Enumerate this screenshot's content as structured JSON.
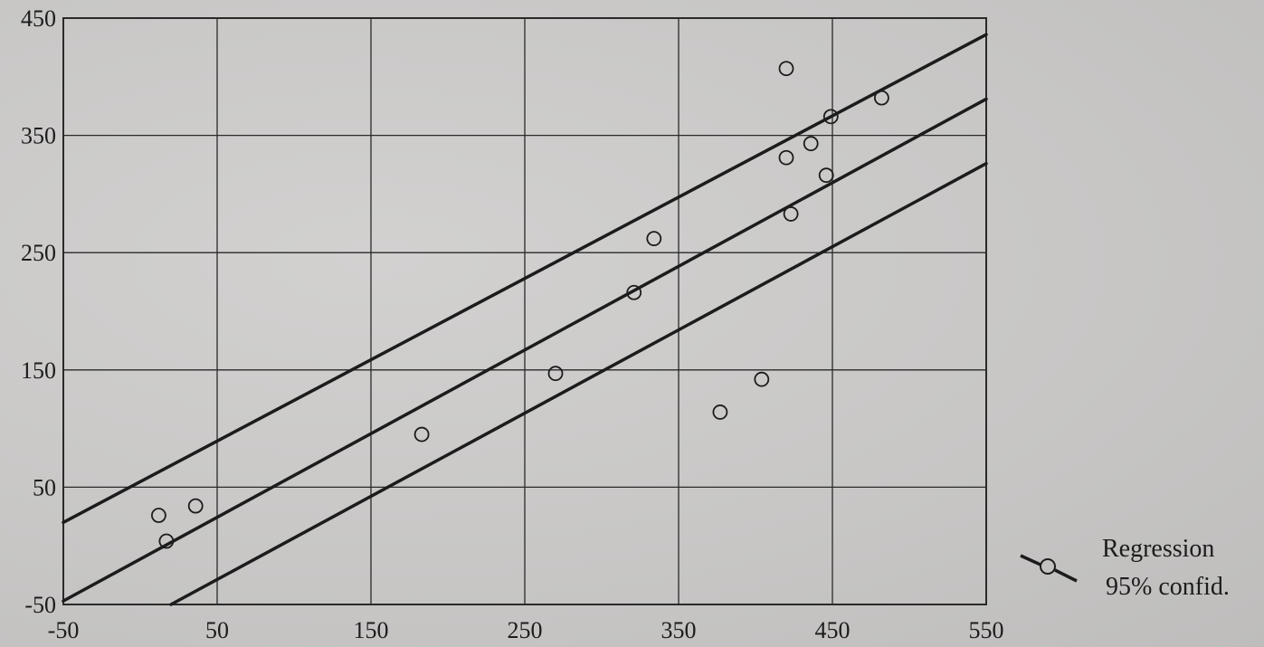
{
  "chart_data": {
    "type": "scatter",
    "title": "",
    "xlabel": "",
    "ylabel": "",
    "xlim": [
      -50,
      550
    ],
    "ylim": [
      -50,
      450
    ],
    "x_ticks": [
      "-50",
      "50",
      "150",
      "250",
      "350",
      "450",
      "550"
    ],
    "y_ticks": [
      "450",
      "350",
      "250",
      "150",
      "50",
      "-50"
    ],
    "grid": true,
    "legend_position": "bottom-right, outside plot",
    "legend": [
      "Regression",
      "95% confid."
    ],
    "points": [
      {
        "x": 12,
        "y": 26
      },
      {
        "x": 17,
        "y": 4
      },
      {
        "x": 36,
        "y": 34
      },
      {
        "x": 183,
        "y": 95
      },
      {
        "x": 270,
        "y": 147
      },
      {
        "x": 321,
        "y": 216
      },
      {
        "x": 334,
        "y": 262
      },
      {
        "x": 377,
        "y": 114
      },
      {
        "x": 404,
        "y": 142
      },
      {
        "x": 420,
        "y": 407
      },
      {
        "x": 420,
        "y": 331
      },
      {
        "x": 423,
        "y": 283
      },
      {
        "x": 436,
        "y": 343
      },
      {
        "x": 446,
        "y": 316
      },
      {
        "x": 449,
        "y": 366
      },
      {
        "x": 482,
        "y": 382
      }
    ],
    "lines": [
      {
        "name": "Regression",
        "from": [
          -50,
          -47
        ],
        "to": [
          550,
          381
        ]
      },
      {
        "name": "95% confid.",
        "from": [
          -50,
          20
        ],
        "to": [
          550,
          436
        ]
      },
      {
        "name": "95% confid.",
        "from": [
          20,
          -50
        ],
        "to": [
          550,
          326
        ]
      }
    ],
    "colors": {
      "ink": "#1c1c1c",
      "grid": "#2a2a2a"
    }
  }
}
